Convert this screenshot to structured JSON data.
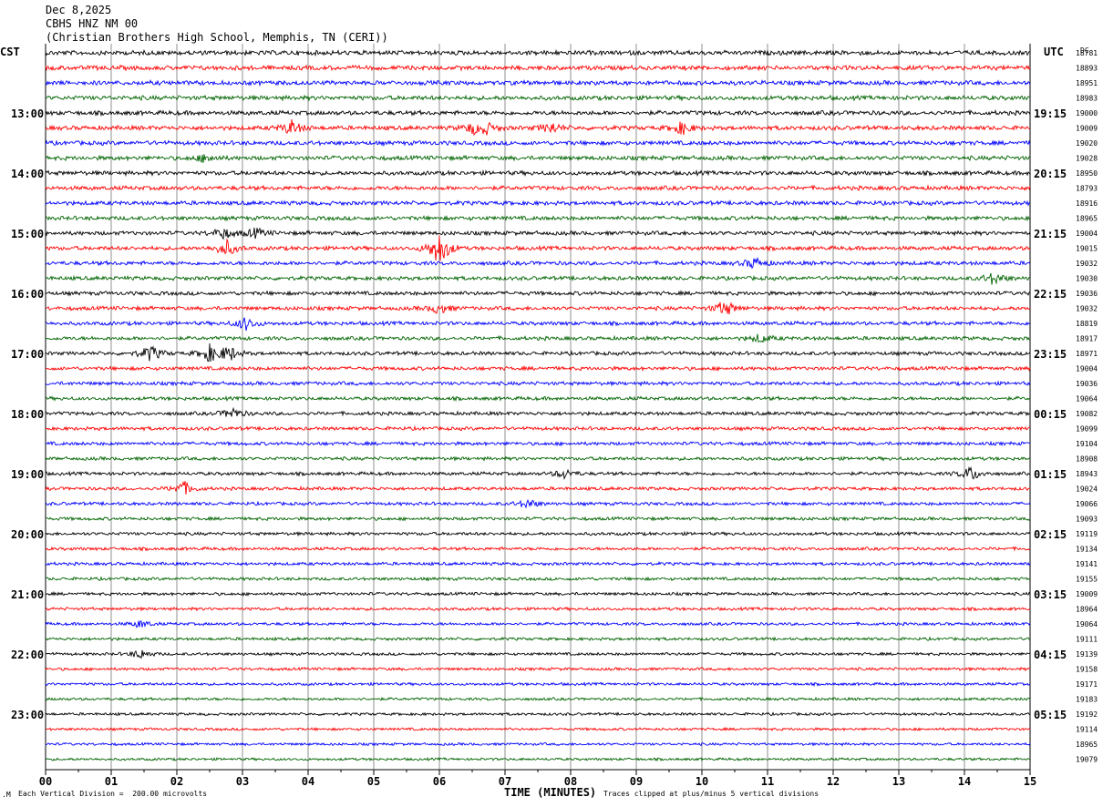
{
  "header": {
    "date": "Dec 8,2025",
    "station": "CBHS HNZ NM 00",
    "location": "(Christian Brothers High School, Memphis, TN (CERI))"
  },
  "left_tz": "CST",
  "right_tz": "UTC",
  "dc_label": "DC",
  "footer": {
    "scale_note": "Each Vertical Division =  200.00 microvolts",
    "xlabel": "TIME (MINUTES)",
    "clip_note": "Traces clipped at plus/minus 5 vertical divisions"
  },
  "colors": [
    "#000000",
    "#ff0000",
    "#0000ff",
    "#006400"
  ],
  "chart_data": {
    "type": "line",
    "title": "CBHS HNZ NM 00",
    "xlabel": "TIME (MINUTES)",
    "xlim": [
      0,
      15
    ],
    "x_ticks": [
      "00",
      "01",
      "02",
      "03",
      "04",
      "05",
      "06",
      "07",
      "08",
      "09",
      "10",
      "11",
      "12",
      "13",
      "14",
      "15"
    ],
    "left_hour_labels": [
      "13:00",
      "14:00",
      "15:00",
      "16:00",
      "17:00",
      "18:00",
      "19:00",
      "20:00",
      "21:00",
      "22:00",
      "23:00"
    ],
    "right_hour_labels": [
      "19:15",
      "20:15",
      "21:15",
      "22:15",
      "23:15",
      "00:15",
      "01:15",
      "02:15",
      "03:15",
      "04:15",
      "05:15"
    ],
    "dc_offsets": [
      18781,
      18893,
      18951,
      18983,
      19000,
      19009,
      19020,
      19028,
      18950,
      18793,
      18916,
      18965,
      19004,
      19015,
      19032,
      19030,
      19036,
      19032,
      18819,
      18917,
      18971,
      19004,
      19036,
      19064,
      19082,
      19099,
      19104,
      18908,
      18943,
      19024,
      19066,
      19093,
      19119,
      19134,
      19141,
      19155,
      19009,
      18964,
      19064,
      19111,
      19139,
      19158,
      19171,
      19183,
      19192,
      19114,
      18965,
      19079
    ],
    "traces_count": 48,
    "events": [
      {
        "trace": 5,
        "minute": 3.75,
        "amp": 8
      },
      {
        "trace": 5,
        "minute": 6.5,
        "amp": 5
      },
      {
        "trace": 5,
        "minute": 6.7,
        "amp": 6
      },
      {
        "trace": 5,
        "minute": 7.7,
        "amp": 6
      },
      {
        "trace": 5,
        "minute": 9.7,
        "amp": 7
      },
      {
        "trace": 7,
        "minute": 2.45,
        "amp": 5
      },
      {
        "trace": 12,
        "minute": 2.7,
        "amp": 6
      },
      {
        "trace": 12,
        "minute": 3.2,
        "amp": 5
      },
      {
        "trace": 13,
        "minute": 2.75,
        "amp": 9
      },
      {
        "trace": 13,
        "minute": 6.0,
        "amp": 20
      },
      {
        "trace": 14,
        "minute": 10.8,
        "amp": 6
      },
      {
        "trace": 15,
        "minute": 14.45,
        "amp": 7
      },
      {
        "trace": 17,
        "minute": 10.35,
        "amp": 9
      },
      {
        "trace": 17,
        "minute": 6.0,
        "amp": 6
      },
      {
        "trace": 18,
        "minute": 3.05,
        "amp": 7
      },
      {
        "trace": 19,
        "minute": 10.9,
        "amp": 5
      },
      {
        "trace": 20,
        "minute": 1.6,
        "amp": 9
      },
      {
        "trace": 20,
        "minute": 2.5,
        "amp": 9
      },
      {
        "trace": 20,
        "minute": 2.8,
        "amp": 8
      },
      {
        "trace": 24,
        "minute": 2.85,
        "amp": 6
      },
      {
        "trace": 28,
        "minute": 7.9,
        "amp": 5
      },
      {
        "trace": 28,
        "minute": 14.1,
        "amp": 8
      },
      {
        "trace": 29,
        "minute": 2.1,
        "amp": 8
      },
      {
        "trace": 30,
        "minute": 7.35,
        "amp": 5
      },
      {
        "trace": 38,
        "minute": 1.45,
        "amp": 4
      },
      {
        "trace": 40,
        "minute": 1.45,
        "amp": 5
      }
    ]
  }
}
